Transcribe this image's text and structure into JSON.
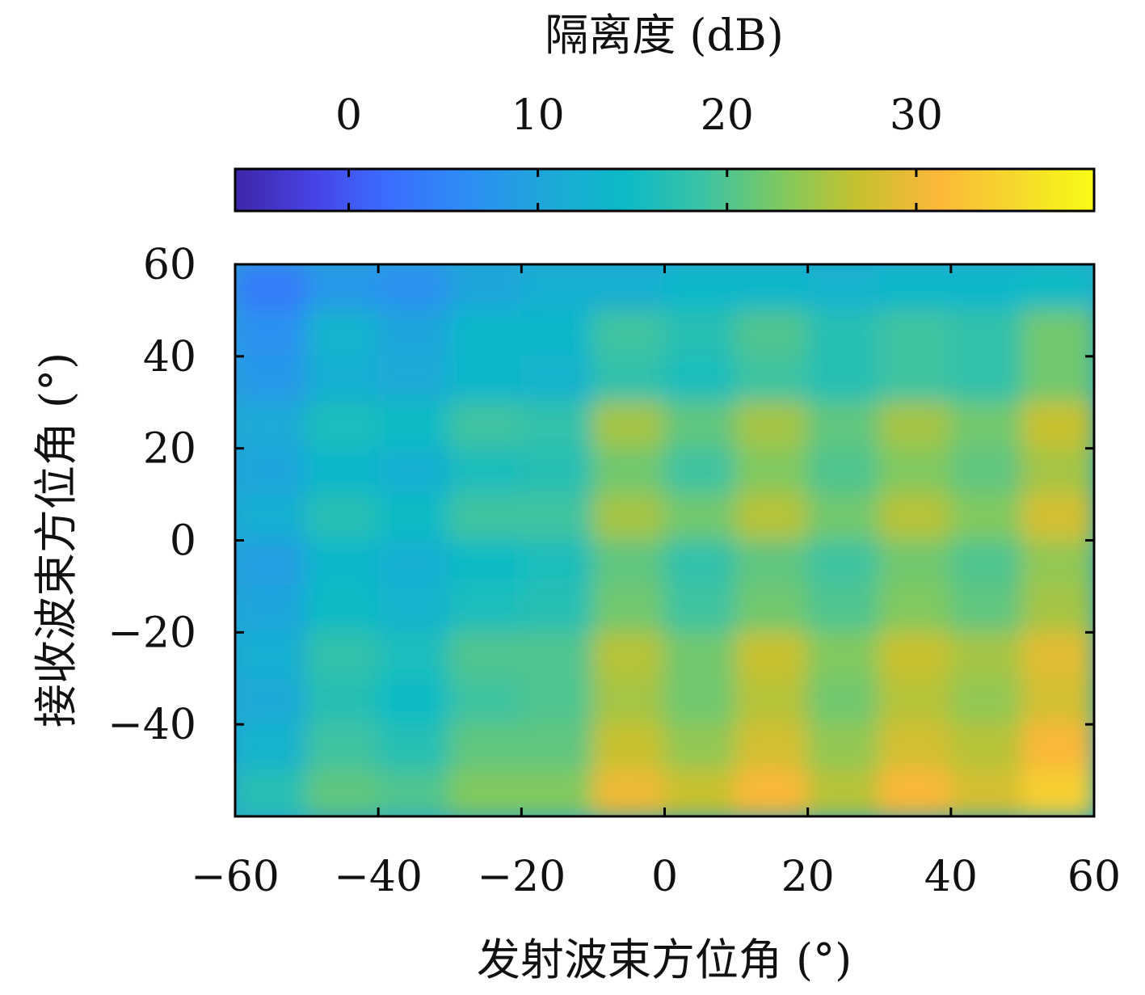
{
  "chart_data": {
    "type": "heatmap",
    "title": "",
    "xlabel": "发射波束方位角 (°)",
    "ylabel": "接收波束方位角 (°)",
    "xlim": [
      -60,
      60
    ],
    "ylim": [
      -60,
      60
    ],
    "xticks": [
      -60,
      -40,
      -20,
      0,
      20,
      40,
      60
    ],
    "yticks": [
      60,
      40,
      20,
      0,
      -20,
      -40
    ],
    "x": [
      -55,
      -45,
      -35,
      -25,
      -15,
      -5,
      5,
      15,
      25,
      35,
      45,
      55
    ],
    "y": [
      55,
      45,
      35,
      25,
      15,
      5,
      -5,
      -15,
      -25,
      -35,
      -45,
      -55
    ],
    "values": [
      [
        4,
        8,
        7,
        10,
        12,
        12,
        14,
        14,
        13,
        14,
        14,
        15
      ],
      [
        7,
        13,
        10,
        14,
        14,
        19,
        17,
        20,
        17,
        19,
        18,
        22
      ],
      [
        8,
        12,
        11,
        14,
        13,
        18,
        16,
        19,
        17,
        19,
        18,
        22
      ],
      [
        11,
        16,
        15,
        19,
        18,
        25,
        21,
        25,
        21,
        25,
        22,
        27
      ],
      [
        10,
        14,
        12,
        16,
        17,
        22,
        19,
        23,
        20,
        23,
        21,
        25
      ],
      [
        12,
        17,
        15,
        19,
        19,
        25,
        22,
        26,
        22,
        26,
        23,
        28
      ],
      [
        9,
        14,
        12,
        15,
        16,
        21,
        18,
        21,
        19,
        22,
        20,
        24
      ],
      [
        10,
        15,
        13,
        16,
        17,
        22,
        19,
        22,
        20,
        23,
        21,
        25
      ],
      [
        12,
        18,
        16,
        20,
        20,
        26,
        22,
        27,
        23,
        27,
        25,
        29
      ],
      [
        11,
        17,
        15,
        19,
        20,
        25,
        22,
        26,
        22,
        26,
        24,
        28
      ],
      [
        13,
        19,
        17,
        21,
        21,
        27,
        24,
        28,
        24,
        28,
        26,
        31
      ],
      [
        17,
        21,
        20,
        23,
        23,
        30,
        27,
        31,
        26,
        31,
        28,
        34
      ]
    ],
    "colorbar": {
      "label": "隔离度 (dB)",
      "ticks": [
        0,
        10,
        20,
        30
      ],
      "range": [
        -6,
        39.4
      ],
      "colormap": [
        "#3e26a8",
        "#4743e5",
        "#3a6ffe",
        "#2d8ef4",
        "#1da8d8",
        "#0cbac7",
        "#3cc3a4",
        "#7fc95f",
        "#c8c12d",
        "#fcb839",
        "#f5d92d",
        "#f9fb15"
      ]
    },
    "grid": false
  }
}
